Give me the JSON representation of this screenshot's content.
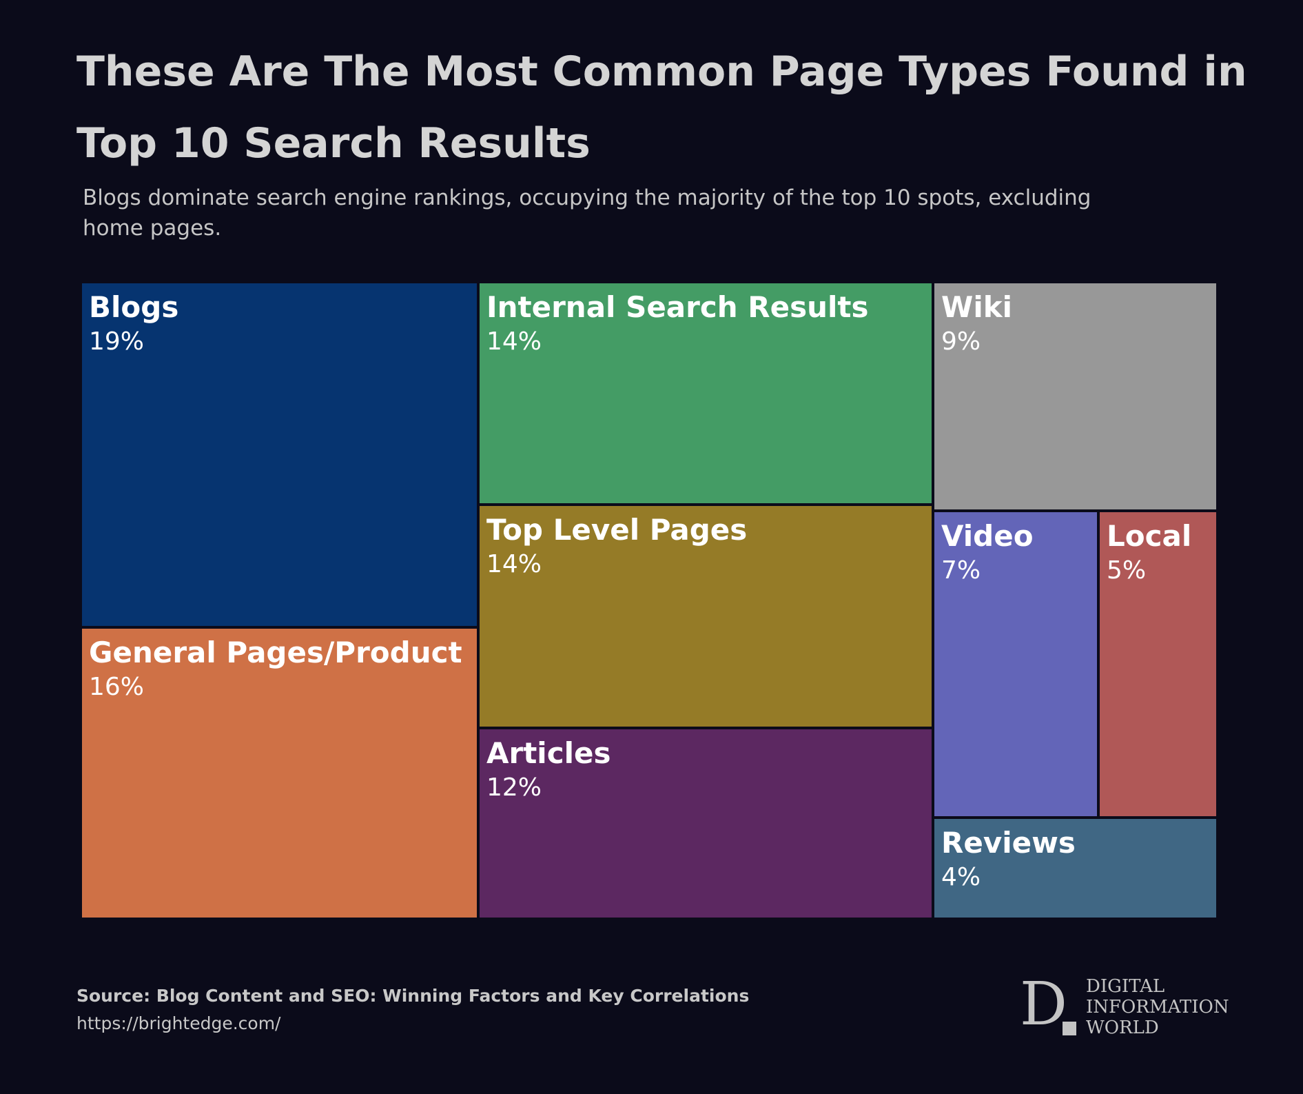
{
  "header": {
    "title": "These Are The Most Common Page Types Found in Top 10 Search Results",
    "subtitle": "Blogs dominate search engine rankings, occupying the majority of the top 10 spots, excluding home pages."
  },
  "chart_data": {
    "type": "treemap",
    "unit": "%",
    "items": [
      {
        "label": "Blogs",
        "value": 19,
        "display": "19%",
        "color": "#063470"
      },
      {
        "label": "General Pages/Product",
        "value": 16,
        "display": "16%",
        "color": "#cf7146"
      },
      {
        "label": "Internal Search Results",
        "value": 14,
        "display": "14%",
        "color": "#449c65"
      },
      {
        "label": "Top Level Pages",
        "value": 14,
        "display": "14%",
        "color": "#957b27"
      },
      {
        "label": "Articles",
        "value": 12,
        "display": "12%",
        "color": "#5c2861"
      },
      {
        "label": "Wiki",
        "value": 9,
        "display": "9%",
        "color": "#989898"
      },
      {
        "label": "Video",
        "value": 7,
        "display": "7%",
        "color": "#6365b8"
      },
      {
        "label": "Local",
        "value": 5,
        "display": "5%",
        "color": "#b05857"
      },
      {
        "label": "Reviews",
        "value": 4,
        "display": "4%",
        "color": "#406784"
      }
    ]
  },
  "footer": {
    "source": "Source: Blog Content and SEO: Winning Factors and Key Correlations",
    "url": "https://brightedge.com/"
  },
  "logo": {
    "letter": "D",
    "lines": [
      "DIGITAL",
      "INFORMATION",
      "WORLD"
    ]
  }
}
